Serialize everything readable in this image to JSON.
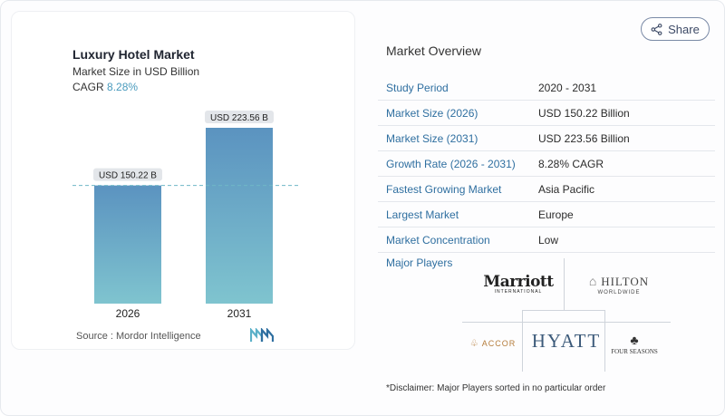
{
  "chart": {
    "title": "Luxury Hotel Market",
    "subtitle": "Market Size in USD Billion",
    "cagr_label": "CAGR",
    "cagr_value": "8.28%",
    "source": "Source :  Mordor Intelligence"
  },
  "chart_data": {
    "type": "bar",
    "categories": [
      "2026",
      "2031"
    ],
    "values": [
      150.22,
      223.56
    ],
    "value_labels": [
      "USD 150.22 B",
      "USD 223.56 B"
    ],
    "title": "Luxury Hotel Market",
    "ylabel": "Market Size in USD Billion",
    "ylim": [
      0,
      223.56
    ],
    "grid": false
  },
  "colors": {
    "bar_top": "#5b93c0",
    "bar_bottom": "#7fc4cf",
    "accent": "#4a9bbd",
    "label_blue": "#2f6fa0"
  },
  "share": {
    "label": "Share",
    "icon": "share-icon"
  },
  "overview": {
    "title": "Market Overview",
    "rows": [
      {
        "label": "Study Period",
        "value": "2020 - 2031"
      },
      {
        "label": "Market Size (2026)",
        "value": "USD 150.22 Billion"
      },
      {
        "label": "Market Size (2031)",
        "value": "USD 223.56 Billion"
      },
      {
        "label": "Growth Rate (2026 - 2031)",
        "value": "8.28% CAGR"
      },
      {
        "label": "Fastest Growing Market",
        "value": "Asia Pacific"
      },
      {
        "label": "Largest Market",
        "value": "Europe"
      },
      {
        "label": "Market Concentration",
        "value": "Low"
      }
    ]
  },
  "players": {
    "title": "Major Players",
    "marriott": "Marriott",
    "marriott_sub": "INTERNATIONAL",
    "hilton": "HILTON",
    "hilton_sub": "WORLDWIDE",
    "hyatt": "HYATT",
    "accor": "ACCOR",
    "fourseasons": "FOUR SEASONS"
  },
  "disclaimer": "*Disclaimer: Major Players sorted in no particular order"
}
